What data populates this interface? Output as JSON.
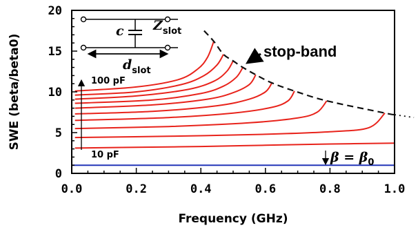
{
  "chart_data": {
    "type": "line",
    "xlabel": "Frequency (GHz)",
    "ylabel": "SWE (beta/beta0)",
    "xlim": [
      0.0,
      1.0
    ],
    "ylim": [
      0,
      20
    ],
    "x_ticks": [
      "0.0",
      "0.2",
      "0.4",
      "0.6",
      "0.8",
      "1.0"
    ],
    "y_ticks": [
      "0",
      "5",
      "10",
      "15",
      "20"
    ],
    "grid": false,
    "series": [
      {
        "color": "#e8231b",
        "x": [
          0.01,
          0.2,
          0.4,
          0.6,
          0.8,
          1.0
        ],
        "y": [
          3.1,
          3.2,
          3.3,
          3.45,
          3.6,
          3.7
        ]
      },
      {
        "color": "#e8231b",
        "x": [
          0.01,
          0.3,
          0.6,
          0.8,
          0.92,
          0.97
        ],
        "y": [
          4.4,
          4.55,
          4.8,
          5.1,
          5.6,
          7.4
        ]
      },
      {
        "color": "#e8231b",
        "x": [
          0.01,
          0.3,
          0.55,
          0.7,
          0.76,
          0.79
        ],
        "y": [
          5.5,
          5.75,
          6.2,
          6.8,
          7.5,
          8.9
        ]
      },
      {
        "color": "#e8231b",
        "x": [
          0.01,
          0.3,
          0.5,
          0.62,
          0.67,
          0.69
        ],
        "y": [
          6.5,
          6.85,
          7.4,
          8.1,
          8.9,
          10.1
        ]
      },
      {
        "color": "#e8231b",
        "x": [
          0.01,
          0.25,
          0.45,
          0.55,
          0.6,
          0.62
        ],
        "y": [
          7.3,
          7.6,
          8.3,
          9.1,
          10.0,
          11.1
        ]
      },
      {
        "color": "#e8231b",
        "x": [
          0.01,
          0.25,
          0.42,
          0.5,
          0.55,
          0.57
        ],
        "y": [
          8.0,
          8.4,
          9.1,
          9.9,
          10.9,
          12.1
        ]
      },
      {
        "color": "#e8231b",
        "x": [
          0.01,
          0.25,
          0.4,
          0.47,
          0.51,
          0.53
        ],
        "y": [
          8.6,
          9.0,
          9.8,
          10.7,
          11.8,
          13.0
        ]
      },
      {
        "color": "#e8231b",
        "x": [
          0.01,
          0.2,
          0.36,
          0.44,
          0.48,
          0.5
        ],
        "y": [
          9.1,
          9.5,
          10.3,
          11.3,
          12.5,
          13.8
        ]
      },
      {
        "color": "#e8231b",
        "x": [
          0.01,
          0.2,
          0.34,
          0.41,
          0.45,
          0.47
        ],
        "y": [
          9.6,
          10.0,
          10.9,
          12.0,
          13.3,
          14.6
        ]
      },
      {
        "color": "#e8231b",
        "x": [
          0.01,
          0.2,
          0.33,
          0.39,
          0.42,
          0.44
        ],
        "y": [
          10.1,
          10.6,
          11.5,
          12.8,
          14.2,
          16.2
        ]
      },
      {
        "color": "#2235b8",
        "x": [
          0.0,
          1.0
        ],
        "y": [
          1.0,
          1.0
        ]
      }
    ],
    "stopband_x": [
      0.41,
      0.44,
      0.47,
      0.5,
      0.53,
      0.57,
      0.62,
      0.69,
      0.79,
      0.97,
      1.0
    ],
    "stopband_y": [
      17.5,
      16.2,
      14.6,
      13.8,
      13.0,
      12.1,
      11.1,
      10.1,
      8.9,
      7.4,
      7.2
    ],
    "stopband_extend_x": [
      1.0,
      1.06
    ],
    "stopband_extend_y": [
      7.2,
      6.85
    ],
    "annotations": {
      "stop_band": "stop-band",
      "cap_high": "100 pF",
      "cap_low": "10 pF",
      "beta_lhs": "β",
      "beta_eq": " = ",
      "beta_rhs": "β",
      "beta_sub": "0"
    },
    "inset": {
      "c": "c",
      "z": "Z",
      "z_sub": "slot",
      "d": "d",
      "d_sub": "slot"
    }
  }
}
